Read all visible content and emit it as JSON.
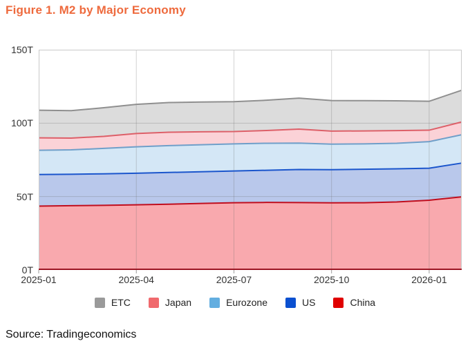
{
  "figure": {
    "title": "Figure 1. M2 by Major Economy",
    "title_color": "#ee6a3d",
    "source": "Source: Tradingeconomics"
  },
  "chart_data": {
    "type": "area",
    "stacked": true,
    "title": "Figure 1. M2 by Major Economy",
    "unit": "T",
    "x": [
      "2025-01",
      "2025-02",
      "2025-03",
      "2025-04",
      "2025-05",
      "2025-06",
      "2025-07",
      "2025-08",
      "2025-09",
      "2025-10",
      "2025-11",
      "2025-12",
      "2026-01",
      "2026-02"
    ],
    "series": [
      {
        "name": "China",
        "values": [
          43.5,
          43.8,
          44.0,
          44.4,
          44.8,
          45.3,
          45.8,
          46.0,
          45.9,
          45.7,
          45.8,
          46.3,
          47.5,
          49.8
        ],
        "fill": "#f9a9ae",
        "line": "#c00d1d"
      },
      {
        "name": "US",
        "values": [
          21.5,
          21.4,
          21.5,
          21.5,
          21.6,
          21.6,
          21.6,
          21.9,
          22.5,
          22.6,
          22.8,
          22.6,
          21.8,
          23.0
        ],
        "fill": "#b9c8eb",
        "line": "#1a55cc"
      },
      {
        "name": "Eurozone",
        "values": [
          16.5,
          16.6,
          17.3,
          18.0,
          18.3,
          18.4,
          18.5,
          18.4,
          18.0,
          17.4,
          17.3,
          17.4,
          18.1,
          19.3
        ],
        "fill": "#d4e7f6",
        "line": "#6f9fc9"
      },
      {
        "name": "Japan",
        "values": [
          8.5,
          8.0,
          8.2,
          9.0,
          9.1,
          8.8,
          8.4,
          8.7,
          9.5,
          8.9,
          8.8,
          8.6,
          7.8,
          8.7
        ],
        "fill": "#fbd2d7",
        "line": "#dd5f68"
      },
      {
        "name": "ETC",
        "values": [
          18.8,
          18.7,
          19.5,
          19.9,
          20.2,
          20.3,
          20.3,
          20.6,
          21.1,
          20.8,
          20.6,
          20.3,
          19.7,
          21.6
        ],
        "fill": "#dcdcdc",
        "line": "#8f8f8f"
      }
    ],
    "stack_order": "bottom-to-top: China, US, Eurozone, Japan, ETC",
    "legend": [
      {
        "label": "ETC",
        "color": "#9a9a9a"
      },
      {
        "label": "Japan",
        "color": "#f0696d"
      },
      {
        "label": "Eurozone",
        "color": "#63aee0"
      },
      {
        "label": "US",
        "color": "#0b50d0"
      },
      {
        "label": "China",
        "color": "#e00000"
      }
    ],
    "legend_position": "bottom",
    "grid": true,
    "ylim": [
      0,
      150
    ],
    "yticks": [
      150,
      100,
      50,
      0
    ],
    "ytick_labels": [
      "150T",
      "100T",
      "50T",
      "0T"
    ],
    "xtick_indices": [
      0,
      3,
      6,
      9,
      12
    ],
    "xtick_labels": [
      "2025-01",
      "2025-04",
      "2025-07",
      "2025-10",
      "2026-01"
    ],
    "axis_colors": {
      "frame": "#c9c9c9",
      "grid": "rgba(110,110,110,0.30)",
      "baseline": "#9c1422",
      "tick": "#9a9a9a"
    }
  }
}
